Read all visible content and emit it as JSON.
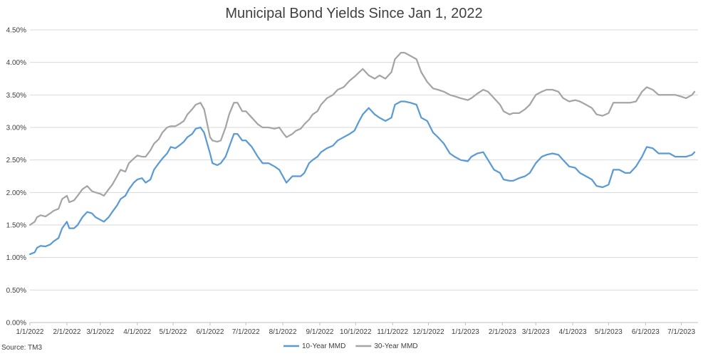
{
  "chart_data": {
    "type": "line",
    "title": "Municipal Bond Yields Since Jan 1, 2022",
    "source": "Source: TM3",
    "y_axis": {
      "min": 0,
      "max": 4.5,
      "step": 0.5,
      "tick_labels": [
        "0.00%",
        "0.50%",
        "1.00%",
        "1.50%",
        "2.00%",
        "2.50%",
        "3.00%",
        "3.50%",
        "4.00%",
        "4.50%"
      ]
    },
    "x_axis": {
      "min": "2022-01-01",
      "max": "2023-07-15",
      "tick_values": [
        "2022-01-01",
        "2022-02-01",
        "2022-03-01",
        "2022-04-01",
        "2022-05-01",
        "2022-06-01",
        "2022-07-01",
        "2022-08-01",
        "2022-09-01",
        "2022-10-01",
        "2022-11-01",
        "2022-12-01",
        "2023-01-01",
        "2023-02-01",
        "2023-03-01",
        "2023-04-01",
        "2023-05-01",
        "2023-06-01",
        "2023-07-01"
      ],
      "tick_labels": [
        "1/1/2022",
        "2/1/2022",
        "3/1/2022",
        "4/1/2022",
        "5/1/2022",
        "6/1/2022",
        "7/1/2022",
        "8/1/2022",
        "9/1/2022",
        "10/1/2022",
        "11/1/2022",
        "12/1/2022",
        "1/1/2023",
        "2/1/2023",
        "3/1/2023",
        "4/1/2023",
        "5/1/2023",
        "6/1/2023",
        "7/1/2023"
      ]
    },
    "grid": true,
    "legend_position": "bottom",
    "series": [
      {
        "name": "10-Year MMD",
        "color": "#5B9BD5",
        "x": [
          "2022-01-01",
          "2022-01-05",
          "2022-01-07",
          "2022-01-10",
          "2022-01-14",
          "2022-01-18",
          "2022-01-21",
          "2022-01-25",
          "2022-01-28",
          "2022-02-01",
          "2022-02-03",
          "2022-02-07",
          "2022-02-10",
          "2022-02-14",
          "2022-02-18",
          "2022-02-22",
          "2022-02-25",
          "2022-03-01",
          "2022-03-04",
          "2022-03-08",
          "2022-03-11",
          "2022-03-15",
          "2022-03-18",
          "2022-03-22",
          "2022-03-25",
          "2022-03-29",
          "2022-04-01",
          "2022-04-05",
          "2022-04-08",
          "2022-04-12",
          "2022-04-15",
          "2022-04-19",
          "2022-04-22",
          "2022-04-26",
          "2022-04-29",
          "2022-05-03",
          "2022-05-06",
          "2022-05-10",
          "2022-05-13",
          "2022-05-17",
          "2022-05-20",
          "2022-05-24",
          "2022-05-27",
          "2022-06-01",
          "2022-06-03",
          "2022-06-07",
          "2022-06-10",
          "2022-06-14",
          "2022-06-17",
          "2022-06-21",
          "2022-06-24",
          "2022-06-28",
          "2022-07-01",
          "2022-07-06",
          "2022-07-11",
          "2022-07-15",
          "2022-07-20",
          "2022-07-25",
          "2022-07-29",
          "2022-08-01",
          "2022-08-04",
          "2022-08-09",
          "2022-08-12",
          "2022-08-16",
          "2022-08-19",
          "2022-08-23",
          "2022-08-26",
          "2022-08-30",
          "2022-09-02",
          "2022-09-07",
          "2022-09-12",
          "2022-09-16",
          "2022-09-21",
          "2022-09-26",
          "2022-09-30",
          "2022-10-04",
          "2022-10-07",
          "2022-10-12",
          "2022-10-17",
          "2022-10-21",
          "2022-10-26",
          "2022-10-31",
          "2022-11-03",
          "2022-11-08",
          "2022-11-11",
          "2022-11-16",
          "2022-11-21",
          "2022-11-25",
          "2022-11-30",
          "2022-12-05",
          "2022-12-09",
          "2022-12-14",
          "2022-12-19",
          "2022-12-23",
          "2022-12-28",
          "2023-01-03",
          "2023-01-06",
          "2023-01-11",
          "2023-01-16",
          "2023-01-20",
          "2023-01-25",
          "2023-01-30",
          "2023-02-02",
          "2023-02-07",
          "2023-02-10",
          "2023-02-15",
          "2023-02-20",
          "2023-02-24",
          "2023-03-01",
          "2023-03-06",
          "2023-03-10",
          "2023-03-15",
          "2023-03-20",
          "2023-03-24",
          "2023-03-29",
          "2023-04-03",
          "2023-04-07",
          "2023-04-12",
          "2023-04-17",
          "2023-04-21",
          "2023-04-26",
          "2023-05-01",
          "2023-05-05",
          "2023-05-10",
          "2023-05-15",
          "2023-05-19",
          "2023-05-24",
          "2023-05-29",
          "2023-06-02",
          "2023-06-07",
          "2023-06-12",
          "2023-06-16",
          "2023-06-21",
          "2023-06-26",
          "2023-06-30",
          "2023-07-05",
          "2023-07-10",
          "2023-07-12"
        ],
        "y": [
          1.05,
          1.08,
          1.15,
          1.18,
          1.17,
          1.2,
          1.25,
          1.3,
          1.45,
          1.55,
          1.45,
          1.45,
          1.5,
          1.62,
          1.7,
          1.68,
          1.62,
          1.58,
          1.55,
          1.62,
          1.7,
          1.8,
          1.9,
          1.95,
          2.05,
          2.15,
          2.2,
          2.22,
          2.15,
          2.2,
          2.35,
          2.45,
          2.52,
          2.6,
          2.7,
          2.68,
          2.72,
          2.78,
          2.85,
          2.9,
          2.98,
          3.0,
          2.92,
          2.6,
          2.45,
          2.42,
          2.45,
          2.55,
          2.7,
          2.9,
          2.9,
          2.8,
          2.8,
          2.7,
          2.55,
          2.45,
          2.45,
          2.4,
          2.35,
          2.25,
          2.15,
          2.25,
          2.25,
          2.25,
          2.3,
          2.45,
          2.5,
          2.55,
          2.62,
          2.68,
          2.72,
          2.8,
          2.85,
          2.9,
          2.95,
          3.1,
          3.2,
          3.3,
          3.2,
          3.15,
          3.1,
          3.15,
          3.35,
          3.4,
          3.4,
          3.38,
          3.35,
          3.15,
          3.1,
          2.92,
          2.85,
          2.75,
          2.6,
          2.55,
          2.5,
          2.48,
          2.55,
          2.6,
          2.62,
          2.5,
          2.35,
          2.3,
          2.2,
          2.18,
          2.18,
          2.22,
          2.25,
          2.3,
          2.45,
          2.55,
          2.58,
          2.6,
          2.58,
          2.5,
          2.4,
          2.38,
          2.3,
          2.25,
          2.2,
          2.1,
          2.08,
          2.12,
          2.35,
          2.35,
          2.3,
          2.3,
          2.4,
          2.55,
          2.7,
          2.68,
          2.6,
          2.6,
          2.6,
          2.55,
          2.55,
          2.55,
          2.58,
          2.62
        ]
      },
      {
        "name": "30-Year MMD",
        "color": "#A5A5A5",
        "x": [
          "2022-01-01",
          "2022-01-05",
          "2022-01-07",
          "2022-01-10",
          "2022-01-14",
          "2022-01-18",
          "2022-01-21",
          "2022-01-25",
          "2022-01-28",
          "2022-02-01",
          "2022-02-03",
          "2022-02-07",
          "2022-02-10",
          "2022-02-14",
          "2022-02-18",
          "2022-02-22",
          "2022-02-25",
          "2022-03-01",
          "2022-03-04",
          "2022-03-08",
          "2022-03-11",
          "2022-03-15",
          "2022-03-18",
          "2022-03-22",
          "2022-03-25",
          "2022-03-29",
          "2022-04-01",
          "2022-04-05",
          "2022-04-08",
          "2022-04-12",
          "2022-04-15",
          "2022-04-19",
          "2022-04-22",
          "2022-04-26",
          "2022-04-29",
          "2022-05-03",
          "2022-05-06",
          "2022-05-10",
          "2022-05-13",
          "2022-05-17",
          "2022-05-20",
          "2022-05-24",
          "2022-05-27",
          "2022-06-01",
          "2022-06-03",
          "2022-06-07",
          "2022-06-10",
          "2022-06-14",
          "2022-06-17",
          "2022-06-21",
          "2022-06-24",
          "2022-06-28",
          "2022-07-01",
          "2022-07-06",
          "2022-07-11",
          "2022-07-15",
          "2022-07-20",
          "2022-07-25",
          "2022-07-29",
          "2022-08-01",
          "2022-08-04",
          "2022-08-09",
          "2022-08-12",
          "2022-08-16",
          "2022-08-19",
          "2022-08-23",
          "2022-08-26",
          "2022-08-30",
          "2022-09-02",
          "2022-09-07",
          "2022-09-12",
          "2022-09-16",
          "2022-09-21",
          "2022-09-26",
          "2022-09-30",
          "2022-10-04",
          "2022-10-07",
          "2022-10-12",
          "2022-10-17",
          "2022-10-21",
          "2022-10-26",
          "2022-10-31",
          "2022-11-03",
          "2022-11-08",
          "2022-11-11",
          "2022-11-16",
          "2022-11-21",
          "2022-11-25",
          "2022-11-30",
          "2022-12-05",
          "2022-12-09",
          "2022-12-14",
          "2022-12-19",
          "2022-12-23",
          "2022-12-28",
          "2023-01-03",
          "2023-01-06",
          "2023-01-11",
          "2023-01-16",
          "2023-01-20",
          "2023-01-25",
          "2023-01-30",
          "2023-02-02",
          "2023-02-07",
          "2023-02-10",
          "2023-02-15",
          "2023-02-20",
          "2023-02-24",
          "2023-03-01",
          "2023-03-06",
          "2023-03-10",
          "2023-03-15",
          "2023-03-20",
          "2023-03-24",
          "2023-03-29",
          "2023-04-03",
          "2023-04-07",
          "2023-04-12",
          "2023-04-17",
          "2023-04-21",
          "2023-04-26",
          "2023-05-01",
          "2023-05-05",
          "2023-05-10",
          "2023-05-15",
          "2023-05-19",
          "2023-05-24",
          "2023-05-29",
          "2023-06-02",
          "2023-06-07",
          "2023-06-12",
          "2023-06-16",
          "2023-06-21",
          "2023-06-26",
          "2023-06-30",
          "2023-07-05",
          "2023-07-10",
          "2023-07-12"
        ],
        "y": [
          1.5,
          1.55,
          1.62,
          1.65,
          1.63,
          1.68,
          1.72,
          1.75,
          1.9,
          1.95,
          1.85,
          1.88,
          1.95,
          2.05,
          2.1,
          2.02,
          2.0,
          1.98,
          1.95,
          2.05,
          2.12,
          2.25,
          2.35,
          2.32,
          2.45,
          2.52,
          2.57,
          2.55,
          2.55,
          2.65,
          2.75,
          2.82,
          2.92,
          3.0,
          3.02,
          3.02,
          3.05,
          3.1,
          3.2,
          3.28,
          3.35,
          3.38,
          3.28,
          2.85,
          2.8,
          2.78,
          2.8,
          3.0,
          3.2,
          3.38,
          3.38,
          3.25,
          3.25,
          3.15,
          3.05,
          3.0,
          3.0,
          2.98,
          3.0,
          2.92,
          2.85,
          2.9,
          2.95,
          2.98,
          3.05,
          3.12,
          3.2,
          3.25,
          3.35,
          3.45,
          3.5,
          3.58,
          3.62,
          3.72,
          3.78,
          3.85,
          3.9,
          3.8,
          3.75,
          3.8,
          3.75,
          3.85,
          4.05,
          4.15,
          4.15,
          4.1,
          4.05,
          3.85,
          3.7,
          3.6,
          3.58,
          3.55,
          3.5,
          3.48,
          3.45,
          3.42,
          3.45,
          3.52,
          3.58,
          3.55,
          3.45,
          3.35,
          3.25,
          3.2,
          3.22,
          3.22,
          3.28,
          3.35,
          3.5,
          3.55,
          3.58,
          3.58,
          3.55,
          3.45,
          3.4,
          3.42,
          3.4,
          3.35,
          3.3,
          3.2,
          3.18,
          3.22,
          3.38,
          3.38,
          3.38,
          3.38,
          3.4,
          3.55,
          3.62,
          3.58,
          3.5,
          3.5,
          3.5,
          3.5,
          3.48,
          3.45,
          3.5,
          3.55
        ]
      }
    ]
  }
}
